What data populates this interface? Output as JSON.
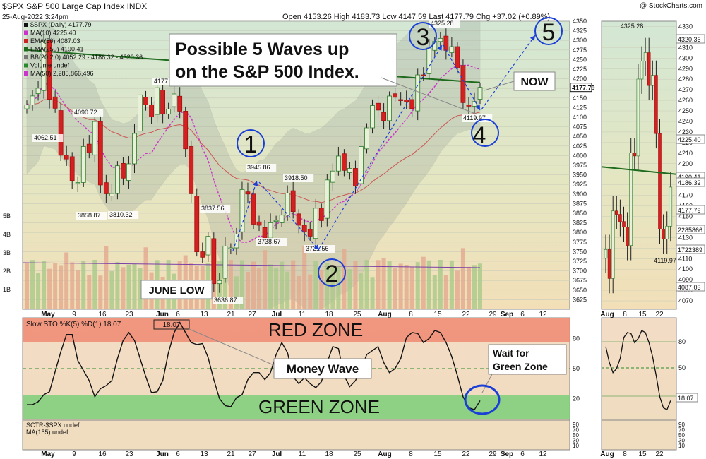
{
  "header": {
    "symbol_line": "$SPX S&P 500 Large Cap Index INDX",
    "watermark": "@ StockCharts.com",
    "date_line": "25-Aug-2022 3:24pm",
    "quote_line": "Open 4153.26   High 4183.73   Low 4147.59   Last 4177.79   Chg +37.02 (+0.89%)"
  },
  "legend": {
    "items": [
      {
        "text": "$SPX (Daily) 4177.79",
        "color": "#111111"
      },
      {
        "text": "MA(10) 4225.40",
        "color": "#cc33cc"
      },
      {
        "text": "EMA(50) 4087.03",
        "color": "#cc2222"
      },
      {
        "text": "EMA(250) 4190.41",
        "color": "#1e6b1e"
      },
      {
        "text": "BB(20,2.0) 4052.29 - 4186.32 - 4320.36",
        "color": "#777777"
      },
      {
        "text": "Volume undef",
        "color": "#2a8a2a"
      },
      {
        "text": "MA(50) 2,285,866,496",
        "color": "#cc33cc"
      }
    ]
  },
  "annotations": {
    "headline_1": "Possible 5 Waves up",
    "headline_2": "on the S&P 500 Index.",
    "now": "NOW",
    "june_low": "JUNE LOW",
    "money_wave": "Money Wave",
    "wait_1": "Wait for",
    "wait_2": "Green Zone",
    "red_zone": "RED ZONE",
    "green_zone": "GREEN ZONE",
    "waves": [
      "1",
      "2",
      "3",
      "4",
      "5"
    ]
  },
  "chart_data": [
    {
      "type": "candlestick",
      "title": "$SPX S&P 500 Large Cap Index INDX",
      "ylim": [
        3600,
        4350
      ],
      "y_ticks": [
        3625,
        3650,
        3675,
        3700,
        3725,
        3750,
        3775,
        3800,
        3825,
        3850,
        3875,
        3900,
        3925,
        3950,
        3975,
        4000,
        4025,
        4050,
        4075,
        4100,
        4125,
        4150,
        4175,
        4200,
        4225,
        4250,
        4275,
        4300,
        4325,
        4350
      ],
      "x_tick_labels": [
        "May",
        "9",
        "16",
        "23",
        "Jun",
        "6",
        "13",
        "21",
        "27",
        "Jul",
        "11",
        "18",
        "25",
        "Aug",
        "8",
        "15",
        "22",
        "29",
        "Sep",
        "6",
        "12"
      ],
      "volume_axis_labels": [
        "1B",
        "2B",
        "3B",
        "4B",
        "5B"
      ],
      "price_labels": [
        "4062.51",
        "4090.72",
        "3858.87",
        "3810.32",
        "4177.5",
        "3837.56",
        "3636.87",
        "3945.86",
        "3738.67",
        "3918.50",
        "3721.56",
        "4325.28",
        "4119.97"
      ],
      "last_price_label": "4177.79",
      "closes": [
        4131.93,
        4155.38,
        4175.48,
        4300.17,
        4146.87,
        4123.34,
        4001.05,
        3991.24,
        3935.18,
        3930.08,
        4023.89,
        4008.01,
        4088.85,
        3923.68,
        3900.79,
        3901.36,
        3973.75,
        3941.48,
        3978.73,
        4057.84,
        4158.24,
        4132.15,
        4101.23,
        4176.82,
        4108.54,
        4121.43,
        4160.68,
        4115.77,
        4017.82,
        3900.86,
        3749.63,
        3735.48,
        3789.99,
        3666.77,
        3674.84,
        3764.79,
        3759.89,
        3795.73,
        3911.74,
        3900.11,
        3821.55,
        3818.83,
        3785.38,
        3825.33,
        3831.39,
        3845.08,
        3902.62,
        3854.43,
        3818.8,
        3801.78,
        3790.38,
        3863.16,
        3830.85,
        3936.69,
        3959.9,
        3998.95,
        3961.63,
        3966.84,
        3921.05,
        4023.61,
        4072.43,
        4130.29,
        4118.63,
        4091.19,
        4155.17,
        4151.94,
        4145.19,
        4140.06,
        4122.47,
        4210.24,
        4207.27,
        4280.15,
        4297.14,
        4305.2,
        4274.04,
        4283.74,
        4228.48,
        4137.99,
        4128.73,
        4140.77,
        4177.79
      ],
      "overlays": {
        "ma10_last": 4225.4,
        "ema50_last": 4087.03,
        "ema250_last": 4190.41,
        "bb_lower": 4052.29,
        "bb_mid": 4186.32,
        "bb_upper": 4320.36
      }
    },
    {
      "type": "line",
      "title": "Slow STO %K(5) %D(1) 18.07",
      "value_badge": "18.07",
      "ylim": [
        0,
        100
      ],
      "y_ticks": [
        "20",
        "50",
        "80"
      ],
      "values": [
        14,
        14,
        17,
        24,
        27,
        47,
        67,
        84,
        84,
        58,
        48,
        38,
        22,
        30,
        33,
        38,
        60,
        78,
        86,
        78,
        60,
        42,
        26,
        27,
        38,
        66,
        86,
        96,
        86,
        76,
        74,
        75,
        61,
        39,
        20,
        13,
        12,
        21,
        24,
        39,
        46,
        46,
        39,
        46,
        64,
        76,
        66,
        42,
        35,
        41,
        35,
        31,
        37,
        56,
        72,
        70,
        43,
        32,
        38,
        50,
        64,
        68,
        72,
        56,
        46,
        50,
        60,
        81,
        86,
        85,
        76,
        80,
        88,
        86,
        76,
        62,
        43,
        22,
        11,
        9,
        18
      ],
      "zones": {
        "red_above": 80,
        "green_below": 20
      }
    },
    {
      "type": "line",
      "title": "SCTR-$SPX undef",
      "subtitle": "MA(155) undef",
      "y_ticks": [
        "90",
        "70",
        "50",
        "30",
        "10"
      ]
    },
    {
      "type": "candlestick",
      "title": "mini view",
      "x_tick_labels": [
        "Aug",
        "8",
        "15",
        "22"
      ],
      "y_ticks": [
        "4070",
        "4080",
        "4090",
        "4100",
        "4110",
        "4120",
        "4130",
        "4140",
        "4150",
        "4160",
        "4170",
        "4180",
        "4190",
        "4200",
        "4210",
        "4220",
        "4230",
        "4240",
        "4250",
        "4260",
        "4270",
        "4280",
        "4290",
        "4300",
        "4310",
        "4320",
        "4330"
      ],
      "price_labels": [
        "4325.28",
        "4119.97"
      ],
      "axis_tags": [
        "4320.36",
        "4225.40",
        "4190.41",
        "4186.32",
        "4177.79",
        "2285866",
        "1722389",
        "4087.03"
      ],
      "sto_ticks": [
        "80",
        "50",
        "20"
      ],
      "sto_value": "18.07",
      "sctr_ticks": [
        "90",
        "70",
        "50",
        "30",
        "10"
      ]
    }
  ]
}
